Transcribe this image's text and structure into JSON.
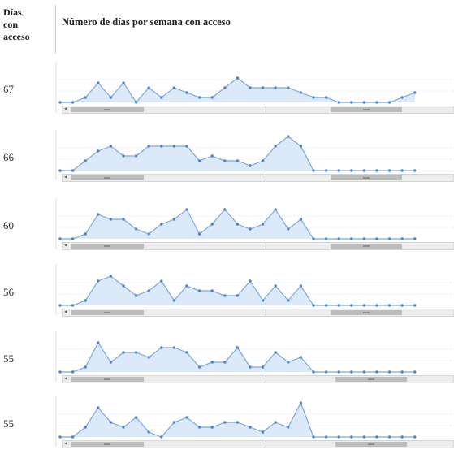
{
  "header": {
    "left_line1": "Días",
    "left_line2": "con",
    "left_line3": "acceso",
    "title": "Número de días por semana con acceso"
  },
  "colors": {
    "line": "#7aa9df",
    "fill": "#dbe9f8",
    "point": "#4a86cf",
    "grid": "#dcdcdc",
    "axis_guide": "#9fc3ea"
  },
  "chart_data": [
    {
      "type": "area",
      "label": "67",
      "ylim": [
        0,
        7
      ],
      "values": [
        0,
        0,
        1,
        4,
        1,
        4,
        0,
        3,
        1,
        3,
        2,
        1,
        1,
        3,
        5,
        3,
        3,
        3,
        3,
        2,
        1,
        1,
        0,
        0,
        0,
        0,
        0,
        1,
        2
      ]
    },
    {
      "type": "area",
      "label": "66",
      "ylim": [
        0,
        7
      ],
      "values": [
        0,
        0,
        2,
        4,
        5,
        3,
        3,
        5,
        5,
        5,
        5,
        2,
        3,
        2,
        2,
        1,
        2,
        5,
        7,
        5,
        0,
        0,
        0,
        0,
        0,
        0,
        0,
        0,
        0
      ]
    },
    {
      "type": "area",
      "label": "60",
      "ylim": [
        0,
        7
      ],
      "values": [
        0,
        0,
        1,
        5,
        4,
        4,
        2,
        1,
        3,
        4,
        6,
        1,
        3,
        6,
        3,
        2,
        3,
        6,
        2,
        4,
        0,
        0,
        0,
        0,
        0,
        0,
        0,
        0,
        0
      ]
    },
    {
      "type": "area",
      "label": "56",
      "ylim": [
        0,
        7
      ],
      "values": [
        0,
        0,
        1,
        5,
        6,
        4,
        2,
        3,
        5,
        1,
        4,
        3,
        3,
        2,
        2,
        5,
        1,
        4,
        1,
        4,
        0,
        0,
        0,
        0,
        0,
        0,
        0,
        0,
        0
      ]
    },
    {
      "type": "area",
      "label": "55",
      "ylim": [
        0,
        7
      ],
      "values": [
        0,
        0,
        1,
        6,
        2,
        4,
        4,
        3,
        5,
        5,
        4,
        1,
        2,
        2,
        5,
        1,
        1,
        4,
        2,
        3,
        0,
        0,
        0,
        0,
        0,
        0,
        0,
        0,
        0
      ]
    },
    {
      "type": "area",
      "label": "55",
      "ylim": [
        0,
        7
      ],
      "values": [
        0,
        0,
        2,
        6,
        3,
        2,
        4,
        1,
        0,
        3,
        4,
        2,
        2,
        3,
        3,
        2,
        1,
        3,
        2,
        7,
        0,
        0,
        0,
        0,
        0,
        0,
        0,
        0,
        0
      ]
    }
  ]
}
